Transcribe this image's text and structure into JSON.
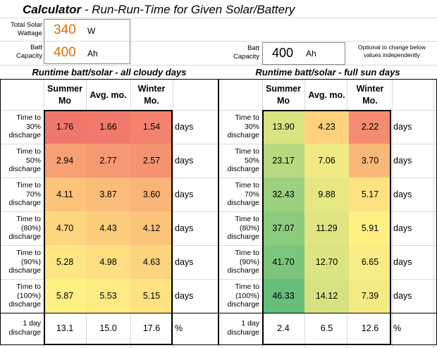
{
  "title": {
    "main": "Calculator",
    "rest": " - Run-Run-Time for Given Solar/Battery"
  },
  "inputs": {
    "solar_label": [
      "Total Solar",
      "Wattage"
    ],
    "solar_value": "340",
    "solar_unit": "W",
    "batt_label": [
      "Batt",
      "Capacity"
    ],
    "batt_value": "400",
    "batt_unit": "Ah",
    "batt2_label": [
      "Batt",
      "Capacity"
    ],
    "batt2_value": "400",
    "batt2_unit": "Ah",
    "note": [
      "Optional to change below",
      "values independently"
    ]
  },
  "left": {
    "heading": "Runtime batt/solar - all cloudy days",
    "cols": [
      [
        "Summer",
        "Mo"
      ],
      [
        "Avg. mo."
      ],
      [
        "Winter",
        "Mo."
      ]
    ],
    "rows": [
      {
        "label": [
          "Time to",
          "30%",
          "discharge"
        ],
        "values": [
          "1.76",
          "1.66",
          "1.54"
        ],
        "unit": "days",
        "colors": [
          "#f0776c",
          "#f17a6d",
          "#f3826f"
        ]
      },
      {
        "label": [
          "Time to",
          "50%",
          "discharge"
        ],
        "values": [
          "2.94",
          "2.77",
          "2.57"
        ],
        "unit": "days",
        "colors": [
          "#f6a074",
          "#f59973",
          "#f49372"
        ]
      },
      {
        "label": [
          "Time to",
          "70%",
          "discharge"
        ],
        "values": [
          "4.11",
          "3.87",
          "3.60"
        ],
        "unit": "days",
        "colors": [
          "#fbc47a",
          "#fabd79",
          "#f9b578"
        ]
      },
      {
        "label": [
          "Time to",
          "(80%)",
          "discharge"
        ],
        "values": [
          "4.70",
          "4.43",
          "4.12"
        ],
        "unit": "days",
        "colors": [
          "#fdd67e",
          "#fcce7c",
          "#fbc47a"
        ]
      },
      {
        "label": [
          "Time to",
          "(90%)",
          "discharge"
        ],
        "values": [
          "5.28",
          "4.98",
          "4.63"
        ],
        "unit": "days",
        "colors": [
          "#fee783",
          "#fdde80",
          "#fcd37e"
        ]
      },
      {
        "label": [
          "Time to",
          "(100%)",
          "discharge"
        ],
        "values": [
          "5.87",
          "5.53",
          "5.15"
        ],
        "unit": "days",
        "colors": [
          "#fff084",
          "#feeb84",
          "#fee282"
        ]
      }
    ],
    "footer": {
      "label": [
        "1 day",
        "discharge"
      ],
      "values": [
        "13.1",
        "15.0",
        "17.6"
      ],
      "unit": "%"
    }
  },
  "right": {
    "heading": "Runtime batt/solar - full sun days",
    "cols": [
      [
        "Summer",
        "Mo"
      ],
      [
        "Avg. mo."
      ],
      [
        "Winter",
        "Mo."
      ]
    ],
    "rows": [
      {
        "label": [
          "Time to",
          "30%",
          "discharge"
        ],
        "values": [
          "13.90",
          "4.23",
          "2.22"
        ],
        "unit": "days",
        "colors": [
          "#d9e382",
          "#fdd17d",
          "#f58c71"
        ]
      },
      {
        "label": [
          "Time to",
          "50%",
          "discharge"
        ],
        "values": [
          "23.17",
          "7.06",
          "3.70"
        ],
        "unit": "days",
        "colors": [
          "#b9d87f",
          "#f1e984",
          "#f9b878"
        ]
      },
      {
        "label": [
          "Time to",
          "70%",
          "discharge"
        ],
        "values": [
          "32.43",
          "9.88",
          "5.17"
        ],
        "unit": "days",
        "colors": [
          "#9cd07e",
          "#e6e683",
          "#fee282"
        ]
      },
      {
        "label": [
          "Time to",
          "(80%)",
          "discharge"
        ],
        "values": [
          "37.07",
          "11.29",
          "5.91"
        ],
        "unit": "days",
        "colors": [
          "#8ccb7d",
          "#e0e483",
          "#fff084"
        ]
      },
      {
        "label": [
          "Time to",
          "(90%)",
          "discharge"
        ],
        "values": [
          "41.70",
          "12.70",
          "6.65"
        ],
        "unit": "days",
        "colors": [
          "#7cc67c",
          "#dbe383",
          "#f8ec84"
        ]
      },
      {
        "label": [
          "Time to",
          "(100%)",
          "discharge"
        ],
        "values": [
          "46.33",
          "14.12",
          "7.39"
        ],
        "unit": "days",
        "colors": [
          "#65bf7b",
          "#d6e282",
          "#f4ea84"
        ]
      }
    ],
    "footer": {
      "label": [
        "1 day",
        "discharge"
      ],
      "values": [
        "2.4",
        "6.5",
        "12.6"
      ],
      "unit": "%"
    }
  }
}
